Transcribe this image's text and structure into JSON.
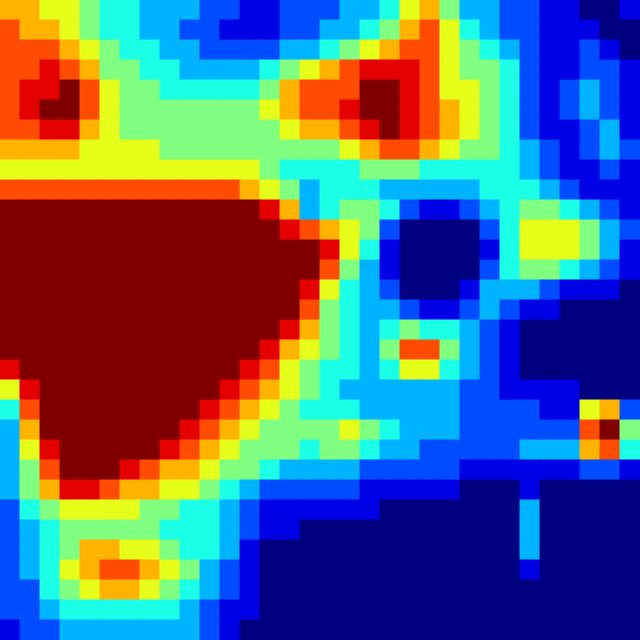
{
  "chart_data": {
    "type": "heatmap",
    "color": "jet",
    "grid": false,
    "tick_labels": false,
    "cells": [
      [
        7,
        7,
        6,
        6,
        5,
        4,
        4,
        3,
        3,
        3,
        2,
        2,
        1,
        1,
        2,
        2,
        2,
        3,
        3,
        4,
        6,
        7,
        5,
        3,
        3,
        2,
        2,
        1,
        1,
        0,
        0,
        1
      ],
      [
        8,
        7,
        7,
        6,
        5,
        4,
        4,
        3,
        3,
        2,
        2,
        1,
        1,
        1,
        2,
        2,
        3,
        3,
        4,
        5,
        7,
        8,
        6,
        4,
        3,
        2,
        2,
        1,
        1,
        1,
        0,
        0
      ],
      [
        8,
        8,
        8,
        7,
        6,
        5,
        4,
        4,
        3,
        3,
        2,
        2,
        2,
        2,
        3,
        3,
        4,
        5,
        6,
        7,
        8,
        8,
        6,
        5,
        4,
        3,
        2,
        1,
        1,
        2,
        1,
        0
      ],
      [
        8,
        8,
        9,
        8,
        7,
        5,
        5,
        4,
        4,
        3,
        3,
        3,
        3,
        4,
        5,
        6,
        7,
        8,
        9,
        9,
        9,
        8,
        6,
        5,
        5,
        4,
        2,
        1,
        1,
        2,
        2,
        1
      ],
      [
        8,
        9,
        9,
        10,
        8,
        6,
        5,
        5,
        4,
        4,
        4,
        4,
        4,
        5,
        7,
        8,
        8,
        8,
        10,
        10,
        9,
        8,
        6,
        6,
        5,
        4,
        2,
        1,
        2,
        3,
        2,
        1
      ],
      [
        8,
        9,
        10,
        10,
        8,
        6,
        5,
        5,
        5,
        5,
        5,
        5,
        5,
        6,
        7,
        8,
        8,
        9,
        10,
        10,
        9,
        8,
        7,
        6,
        5,
        4,
        2,
        1,
        2,
        3,
        2,
        1
      ],
      [
        8,
        8,
        9,
        9,
        7,
        6,
        5,
        5,
        5,
        5,
        5,
        5,
        5,
        5,
        6,
        7,
        7,
        8,
        9,
        10,
        9,
        8,
        7,
        6,
        5,
        4,
        2,
        1,
        1,
        2,
        3,
        1
      ],
      [
        7,
        7,
        7,
        7,
        6,
        6,
        6,
        6,
        5,
        5,
        5,
        5,
        5,
        5,
        5,
        5,
        5,
        6,
        7,
        8,
        8,
        7,
        6,
        5,
        5,
        4,
        3,
        2,
        1,
        2,
        3,
        2
      ],
      [
        6,
        6,
        6,
        6,
        6,
        6,
        6,
        6,
        6,
        6,
        6,
        6,
        6,
        5,
        4,
        4,
        4,
        4,
        5,
        5,
        5,
        4,
        4,
        4,
        4,
        4,
        3,
        2,
        1,
        1,
        2,
        1
      ],
      [
        8,
        8,
        8,
        8,
        8,
        8,
        8,
        8,
        8,
        8,
        8,
        8,
        7,
        6,
        5,
        3,
        4,
        4,
        4,
        3,
        3,
        3,
        3,
        3,
        4,
        4,
        4,
        3,
        2,
        1,
        1,
        1
      ],
      [
        10,
        10,
        10,
        10,
        10,
        10,
        10,
        10,
        10,
        10,
        10,
        10,
        10,
        9,
        7,
        3,
        4,
        5,
        5,
        4,
        2,
        1,
        1,
        2,
        3,
        4,
        5,
        5,
        4,
        3,
        2,
        1
      ],
      [
        10,
        10,
        10,
        10,
        10,
        10,
        10,
        10,
        10,
        10,
        10,
        10,
        10,
        10,
        9,
        8,
        7,
        6,
        5,
        2,
        0,
        0,
        0,
        0,
        2,
        4,
        6,
        6,
        6,
        5,
        3,
        2
      ],
      [
        10,
        10,
        10,
        10,
        10,
        10,
        10,
        10,
        10,
        10,
        10,
        10,
        10,
        10,
        10,
        10,
        9,
        6,
        4,
        1,
        0,
        0,
        0,
        0,
        1,
        4,
        6,
        6,
        6,
        5,
        3,
        1
      ],
      [
        10,
        10,
        10,
        10,
        10,
        10,
        10,
        10,
        10,
        10,
        10,
        10,
        10,
        10,
        10,
        10,
        8,
        5,
        3,
        1,
        0,
        0,
        0,
        0,
        2,
        4,
        5,
        5,
        4,
        3,
        2,
        1
      ],
      [
        10,
        10,
        10,
        10,
        10,
        10,
        10,
        10,
        10,
        10,
        10,
        10,
        10,
        10,
        10,
        9,
        6,
        4,
        3,
        2,
        0,
        0,
        0,
        1,
        3,
        3,
        3,
        2,
        1,
        1,
        1,
        0
      ],
      [
        10,
        10,
        10,
        10,
        10,
        10,
        10,
        10,
        10,
        10,
        10,
        10,
        10,
        10,
        10,
        8,
        5,
        4,
        3,
        3,
        2,
        1,
        1,
        2,
        3,
        2,
        1,
        1,
        0,
        0,
        0,
        0
      ],
      [
        10,
        10,
        10,
        10,
        10,
        10,
        10,
        10,
        10,
        10,
        10,
        10,
        10,
        10,
        9,
        7,
        5,
        4,
        3,
        4,
        5,
        4,
        4,
        3,
        2,
        1,
        0,
        0,
        0,
        0,
        0,
        0
      ],
      [
        10,
        10,
        10,
        10,
        10,
        10,
        10,
        10,
        10,
        10,
        10,
        10,
        10,
        9,
        7,
        6,
        5,
        4,
        3,
        5,
        8,
        8,
        5,
        3,
        2,
        1,
        0,
        0,
        0,
        0,
        0,
        0
      ],
      [
        9,
        10,
        10,
        10,
        10,
        10,
        10,
        10,
        10,
        10,
        10,
        10,
        9,
        8,
        6,
        5,
        4,
        4,
        3,
        4,
        6,
        6,
        4,
        3,
        2,
        1,
        0,
        0,
        0,
        0,
        0,
        0
      ],
      [
        6,
        9,
        10,
        10,
        10,
        10,
        10,
        10,
        10,
        10,
        10,
        9,
        8,
        7,
        6,
        5,
        4,
        3,
        3,
        3,
        3,
        3,
        3,
        2,
        2,
        1,
        1,
        1,
        1,
        0,
        0,
        0
      ],
      [
        4,
        8,
        10,
        10,
        10,
        10,
        10,
        10,
        10,
        10,
        9,
        8,
        7,
        6,
        5,
        4,
        4,
        4,
        3,
        3,
        3,
        3,
        3,
        2,
        2,
        2,
        2,
        1,
        1,
        6,
        7,
        2
      ],
      [
        3,
        7,
        10,
        10,
        10,
        10,
        10,
        10,
        10,
        9,
        8,
        7,
        6,
        5,
        5,
        5,
        5,
        6,
        5,
        4,
        3,
        3,
        3,
        2,
        2,
        2,
        2,
        2,
        2,
        8,
        10,
        5
      ],
      [
        3,
        6,
        9,
        10,
        10,
        10,
        10,
        10,
        9,
        8,
        7,
        6,
        5,
        5,
        5,
        4,
        5,
        5,
        4,
        3,
        3,
        2,
        2,
        2,
        2,
        2,
        3,
        3,
        3,
        7,
        8,
        4
      ],
      [
        3,
        5,
        8,
        10,
        10,
        10,
        9,
        8,
        7,
        7,
        6,
        5,
        5,
        4,
        3,
        3,
        3,
        3,
        2,
        2,
        2,
        2,
        2,
        1,
        1,
        1,
        1,
        1,
        1,
        2,
        2,
        1
      ],
      [
        3,
        5,
        7,
        9,
        9,
        8,
        7,
        7,
        6,
        6,
        5,
        4,
        3,
        2,
        2,
        2,
        2,
        2,
        1,
        1,
        1,
        1,
        1,
        0,
        0,
        0,
        1,
        0,
        0,
        0,
        0,
        0
      ],
      [
        2,
        4,
        5,
        6,
        6,
        6,
        6,
        5,
        5,
        4,
        4,
        3,
        2,
        1,
        1,
        1,
        1,
        1,
        1,
        0,
        0,
        0,
        0,
        0,
        0,
        0,
        3,
        0,
        0,
        0,
        0,
        0
      ],
      [
        2,
        3,
        4,
        5,
        5,
        5,
        5,
        5,
        4,
        4,
        4,
        3,
        2,
        1,
        1,
        0,
        0,
        0,
        0,
        0,
        0,
        0,
        0,
        0,
        0,
        0,
        3,
        0,
        0,
        0,
        0,
        0
      ],
      [
        2,
        3,
        4,
        5,
        7,
        7,
        6,
        6,
        5,
        4,
        4,
        3,
        1,
        0,
        0,
        0,
        0,
        0,
        0,
        0,
        0,
        0,
        0,
        0,
        0,
        0,
        3,
        0,
        0,
        0,
        0,
        0
      ],
      [
        2,
        3,
        4,
        6,
        7,
        8,
        8,
        7,
        6,
        5,
        3,
        2,
        1,
        0,
        0,
        0,
        0,
        0,
        0,
        0,
        0,
        0,
        0,
        0,
        0,
        0,
        1,
        0,
        0,
        0,
        0,
        0
      ],
      [
        2,
        2,
        4,
        5,
        6,
        7,
        7,
        6,
        5,
        4,
        3,
        2,
        1,
        0,
        0,
        0,
        0,
        0,
        0,
        0,
        0,
        0,
        0,
        0,
        0,
        0,
        0,
        0,
        0,
        0,
        0,
        0
      ],
      [
        2,
        2,
        3,
        4,
        4,
        4,
        4,
        4,
        4,
        3,
        2,
        1,
        1,
        0,
        0,
        0,
        0,
        0,
        0,
        0,
        0,
        0,
        0,
        0,
        0,
        0,
        0,
        0,
        0,
        0,
        0,
        0
      ],
      [
        1,
        2,
        2,
        3,
        3,
        3,
        3,
        3,
        3,
        3,
        2,
        1,
        0,
        0,
        0,
        0,
        0,
        0,
        0,
        0,
        0,
        0,
        0,
        0,
        0,
        0,
        0,
        0,
        0,
        0,
        0,
        0
      ]
    ]
  }
}
